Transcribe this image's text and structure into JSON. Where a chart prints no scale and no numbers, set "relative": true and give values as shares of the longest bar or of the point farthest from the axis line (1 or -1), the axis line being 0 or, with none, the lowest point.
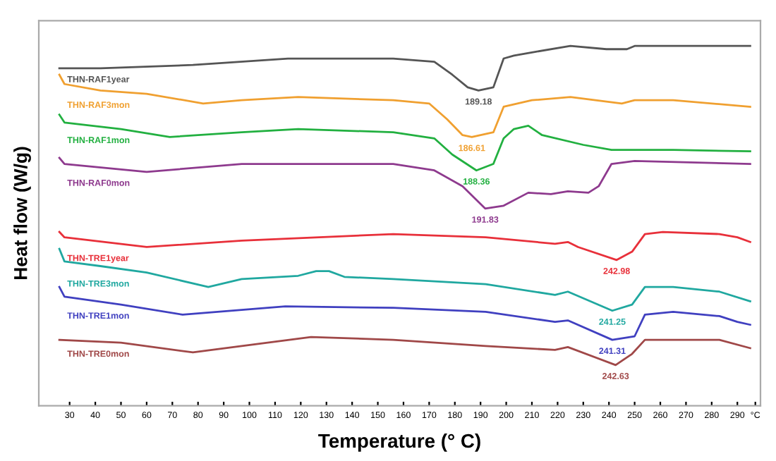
{
  "chart_data": {
    "type": "line",
    "relative": true,
    "xlabel": "Temperature (° C)",
    "ylabel": "Heat flow (W/g)",
    "xlim": [
      18,
      299
    ],
    "xticks": [
      30,
      40,
      50,
      60,
      70,
      80,
      90,
      100,
      110,
      120,
      130,
      140,
      150,
      160,
      170,
      180,
      190,
      200,
      210,
      220,
      230,
      240,
      250,
      260,
      270,
      280,
      290,
      {
        "value": 297,
        "label": "°C"
      }
    ],
    "grid": false,
    "legend": false,
    "marker": "none",
    "line_style": "solid",
    "series": [
      {
        "name": "THN-RAF1year",
        "color": "#555555",
        "x": [
          26,
          42,
          78,
          115,
          156,
          172,
          179,
          185,
          189.2,
          195,
          199,
          203,
          210,
          225,
          239,
          247,
          250,
          274,
          295
        ],
        "values": [
          0.938,
          0.938,
          0.947,
          0.965,
          0.965,
          0.956,
          0.92,
          0.885,
          0.876,
          0.885,
          0.965,
          0.973,
          0.982,
          1.0,
          0.991,
          0.991,
          1.0,
          1.0,
          1.0
        ]
      },
      {
        "name": "THN-RAF3mon",
        "color": "#f0a030",
        "x": [
          26,
          28,
          42,
          60,
          82,
          97,
          119,
          156,
          170,
          177,
          183,
          186.6,
          195,
          199,
          210,
          225,
          245,
          250,
          265,
          295
        ],
        "values": [
          0.92,
          0.894,
          0.876,
          0.867,
          0.84,
          0.849,
          0.858,
          0.849,
          0.84,
          0.796,
          0.752,
          0.747,
          0.76,
          0.831,
          0.849,
          0.858,
          0.84,
          0.849,
          0.849,
          0.831
        ]
      },
      {
        "name": "THN-RAF1mon",
        "color": "#22b040",
        "x": [
          26,
          28,
          50,
          69,
          97,
          119,
          156,
          172,
          179,
          188.4,
          195,
          199,
          203,
          208.6,
          214,
          230,
          241,
          265,
          295
        ],
        "values": [
          0.809,
          0.787,
          0.769,
          0.747,
          0.76,
          0.769,
          0.76,
          0.743,
          0.698,
          0.654,
          0.672,
          0.743,
          0.769,
          0.778,
          0.752,
          0.725,
          0.711,
          0.711,
          0.707
        ]
      },
      {
        "name": "THN-RAF0mon",
        "color": "#8e3a8e",
        "x": [
          26,
          28,
          60,
          97,
          156,
          172,
          183,
          191.8,
          199,
          208.6,
          217.4,
          224,
          232,
          236,
          241,
          250,
          295
        ],
        "values": [
          0.689,
          0.672,
          0.65,
          0.672,
          0.672,
          0.654,
          0.61,
          0.548,
          0.556,
          0.592,
          0.588,
          0.596,
          0.592,
          0.61,
          0.672,
          0.68,
          0.672
        ]
      },
      {
        "name": "THN-TRE1year",
        "color": "#e8303a",
        "x": [
          26,
          28,
          60,
          97,
          156,
          192,
          219,
          224,
          228,
          243,
          249,
          254,
          261,
          283,
          290,
          295
        ],
        "values": [
          0.483,
          0.468,
          0.441,
          0.459,
          0.477,
          0.468,
          0.45,
          0.455,
          0.441,
          0.405,
          0.428,
          0.477,
          0.483,
          0.477,
          0.468,
          0.455
        ]
      },
      {
        "name": "THN-TRE3mon",
        "color": "#20a8a0",
        "x": [
          26,
          28,
          42,
          60,
          84,
          97,
          119,
          126,
          131,
          137,
          156,
          192,
          219,
          224,
          241.3,
          249,
          254,
          265,
          283,
          295
        ],
        "values": [
          0.436,
          0.401,
          0.388,
          0.37,
          0.33,
          0.352,
          0.361,
          0.374,
          0.374,
          0.358,
          0.352,
          0.338,
          0.308,
          0.317,
          0.264,
          0.281,
          0.33,
          0.33,
          0.317,
          0.29
        ]
      },
      {
        "name": "THN-TRE1mon",
        "color": "#4040c0",
        "x": [
          26,
          28,
          50,
          74,
          114,
          156,
          192,
          219,
          224,
          241.3,
          250,
          254,
          265,
          283,
          290,
          295
        ],
        "values": [
          0.33,
          0.303,
          0.281,
          0.253,
          0.276,
          0.272,
          0.261,
          0.233,
          0.237,
          0.183,
          0.193,
          0.253,
          0.261,
          0.249,
          0.233,
          0.225
        ]
      },
      {
        "name": "THN-TRE0mon",
        "color": "#a04848",
        "x": [
          26,
          50,
          78,
          97,
          124,
          156,
          192,
          219,
          224,
          242.6,
          249,
          254,
          265,
          283,
          295
        ],
        "values": [
          0.183,
          0.175,
          0.148,
          0.166,
          0.191,
          0.183,
          0.166,
          0.155,
          0.163,
          0.113,
          0.144,
          0.183,
          0.183,
          0.183,
          0.16
        ]
      }
    ],
    "annotations": [
      {
        "text": "189.18",
        "x": 189.2,
        "y": 0.876
      },
      {
        "text": "186.61",
        "x": 186.6,
        "y": 0.747
      },
      {
        "text": "188.36",
        "x": 188.4,
        "y": 0.654
      },
      {
        "text": "191.83",
        "x": 191.8,
        "y": 0.548
      },
      {
        "text": "242.98",
        "x": 243,
        "y": 0.405
      },
      {
        "text": "241.25",
        "x": 241.3,
        "y": 0.264
      },
      {
        "text": "241.31",
        "x": 241.3,
        "y": 0.183
      },
      {
        "text": "242.63",
        "x": 242.6,
        "y": 0.113
      }
    ]
  }
}
